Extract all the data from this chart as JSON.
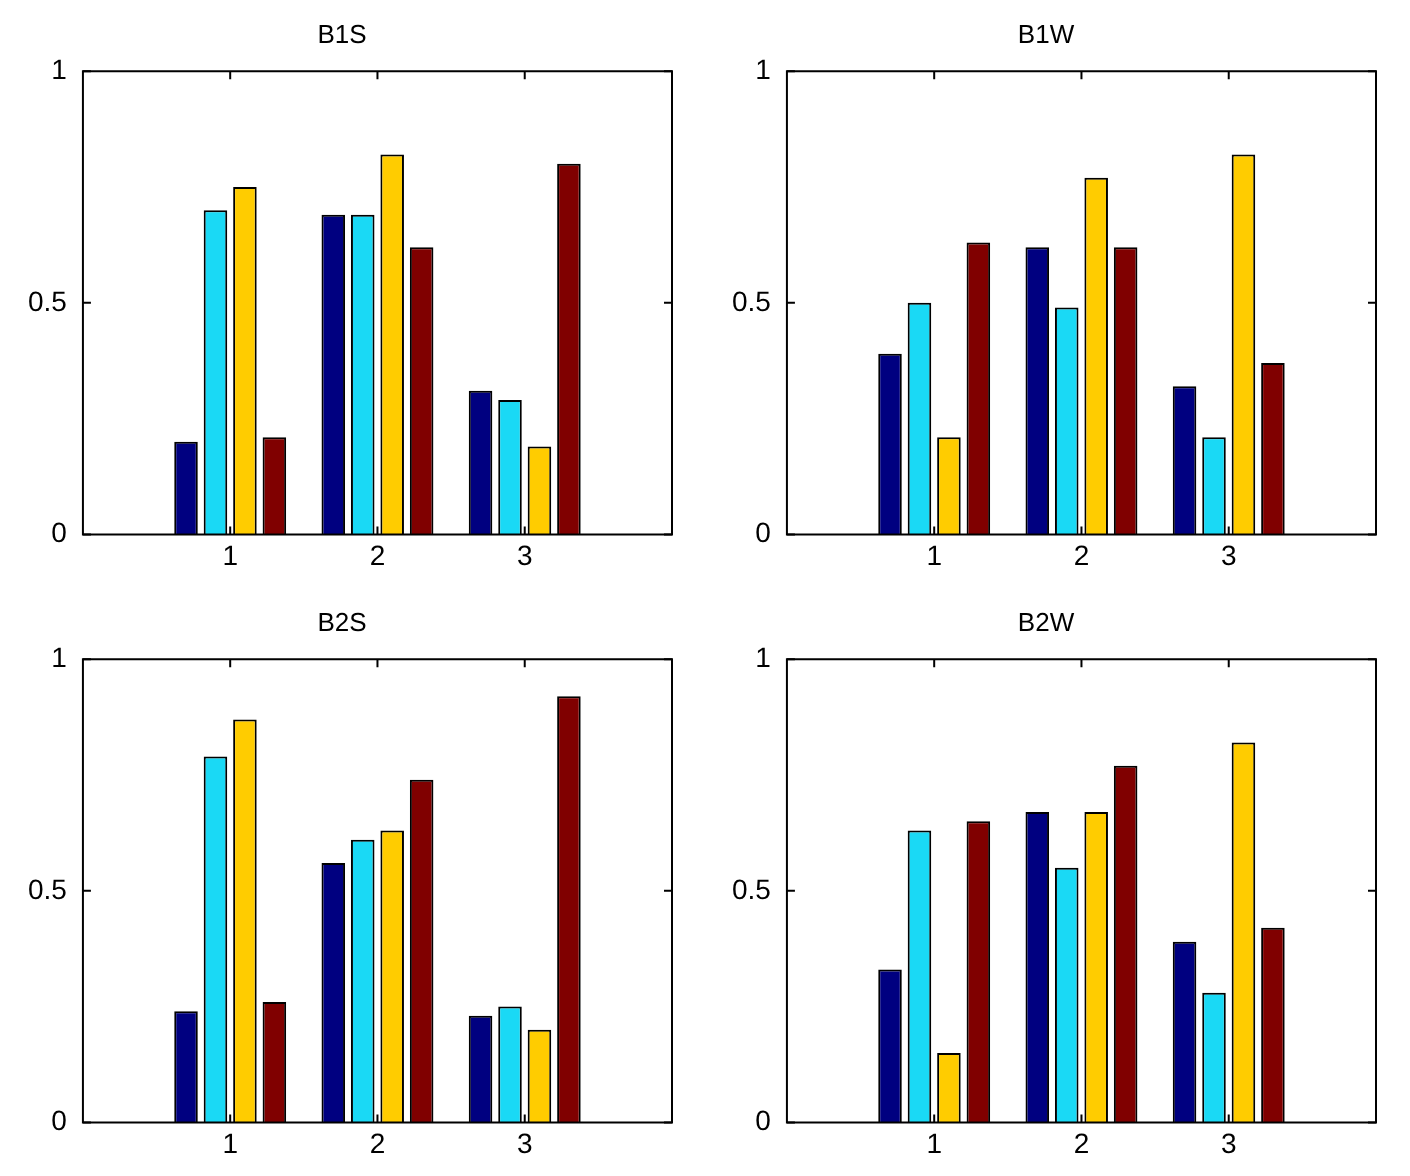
{
  "chart_data": [
    {
      "type": "bar",
      "title": "B1S",
      "x": [
        1,
        2,
        3
      ],
      "xlim": [
        0,
        4
      ],
      "xticks": [
        1,
        2,
        3
      ],
      "ylim": [
        0,
        1
      ],
      "yticks": [
        0,
        0.5,
        1
      ],
      "grid": false,
      "legend": false,
      "series": [
        {
          "color": "#000080",
          "values": [
            0.2,
            0.69,
            0.31
          ]
        },
        {
          "color": "#1ad9f5",
          "values": [
            0.7,
            0.69,
            0.29
          ]
        },
        {
          "color": "#ffcc00",
          "values": [
            0.75,
            0.82,
            0.19
          ]
        },
        {
          "color": "#800000",
          "values": [
            0.21,
            0.62,
            0.8
          ]
        }
      ]
    },
    {
      "type": "bar",
      "title": "B1W",
      "x": [
        1,
        2,
        3
      ],
      "xlim": [
        0,
        4
      ],
      "xticks": [
        1,
        2,
        3
      ],
      "ylim": [
        0,
        1
      ],
      "yticks": [
        0,
        0.5,
        1
      ],
      "grid": false,
      "legend": false,
      "series": [
        {
          "color": "#000080",
          "values": [
            0.39,
            0.62,
            0.32
          ]
        },
        {
          "color": "#1ad9f5",
          "values": [
            0.5,
            0.49,
            0.21
          ]
        },
        {
          "color": "#ffcc00",
          "values": [
            0.21,
            0.77,
            0.82
          ]
        },
        {
          "color": "#800000",
          "values": [
            0.63,
            0.62,
            0.37
          ]
        }
      ]
    },
    {
      "type": "bar",
      "title": "B2S",
      "x": [
        1,
        2,
        3
      ],
      "xlim": [
        0,
        4
      ],
      "xticks": [
        1,
        2,
        3
      ],
      "ylim": [
        0,
        1
      ],
      "yticks": [
        0,
        0.5,
        1
      ],
      "grid": false,
      "legend": false,
      "series": [
        {
          "color": "#000080",
          "values": [
            0.24,
            0.56,
            0.23
          ]
        },
        {
          "color": "#1ad9f5",
          "values": [
            0.79,
            0.61,
            0.25
          ]
        },
        {
          "color": "#ffcc00",
          "values": [
            0.87,
            0.63,
            0.2
          ]
        },
        {
          "color": "#800000",
          "values": [
            0.26,
            0.74,
            0.92
          ]
        }
      ]
    },
    {
      "type": "bar",
      "title": "B2W",
      "x": [
        1,
        2,
        3
      ],
      "xlim": [
        0,
        4
      ],
      "xticks": [
        1,
        2,
        3
      ],
      "ylim": [
        0,
        1
      ],
      "yticks": [
        0,
        0.5,
        1
      ],
      "grid": false,
      "legend": false,
      "series": [
        {
          "color": "#000080",
          "values": [
            0.33,
            0.67,
            0.39
          ]
        },
        {
          "color": "#1ad9f5",
          "values": [
            0.63,
            0.55,
            0.28
          ]
        },
        {
          "color": "#ffcc00",
          "values": [
            0.15,
            0.67,
            0.82
          ]
        },
        {
          "color": "#800000",
          "values": [
            0.65,
            0.77,
            0.42
          ]
        }
      ]
    }
  ]
}
